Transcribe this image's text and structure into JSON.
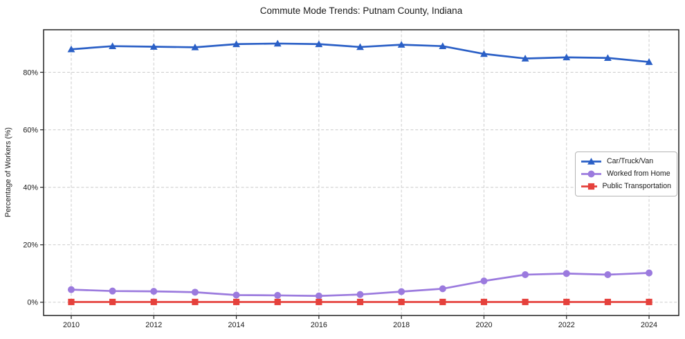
{
  "chart_data": {
    "type": "line",
    "title": "Commute Mode Trends: Putnam County, Indiana",
    "xlabel": "",
    "ylabel": "Percentage of Workers (%)",
    "x": [
      2010,
      2011,
      2012,
      2013,
      2014,
      2015,
      2016,
      2017,
      2018,
      2019,
      2020,
      2021,
      2022,
      2023,
      2024
    ],
    "series": [
      {
        "name": "Car/Truck/Van",
        "color": "#2a5fc6",
        "marker": "triangle",
        "values": [
          88.0,
          89.1,
          88.9,
          88.7,
          89.8,
          90.0,
          89.8,
          88.8,
          89.6,
          89.1,
          86.4,
          84.8,
          85.2,
          85.0,
          83.6
        ]
      },
      {
        "name": "Worked from Home",
        "color": "#9b7ade",
        "marker": "circle",
        "values": [
          4.4,
          3.9,
          3.8,
          3.5,
          2.5,
          2.4,
          2.2,
          2.7,
          3.7,
          4.7,
          7.4,
          9.6,
          10.0,
          9.6,
          10.2
        ]
      },
      {
        "name": "Public Transportation",
        "color": "#e5413c",
        "marker": "square",
        "values": [
          0.1,
          0.1,
          0.1,
          0.1,
          0.1,
          0.1,
          0.1,
          0.1,
          0.1,
          0.1,
          0.1,
          0.1,
          0.1,
          0.1,
          0.1
        ]
      }
    ],
    "xticks": {
      "values": [
        2010,
        2012,
        2014,
        2016,
        2018,
        2020,
        2022,
        2024
      ],
      "labels": [
        "2010",
        "2012",
        "2014",
        "2016",
        "2018",
        "2020",
        "2022",
        "2024"
      ]
    },
    "yticks": {
      "values": [
        0,
        20,
        40,
        60,
        80
      ],
      "labels": [
        "0%",
        "20%",
        "40%",
        "60%",
        "80%"
      ]
    },
    "xlim": [
      2009.33,
      2024.72
    ],
    "ylim": [
      -4.6,
      94.8
    ],
    "grid": true,
    "grid_style": "dashed",
    "legend_position": "center right",
    "colors": {
      "grid": "#cccccc",
      "spine": "#222222",
      "text": "#1a1a1a",
      "background": "#ffffff"
    }
  }
}
